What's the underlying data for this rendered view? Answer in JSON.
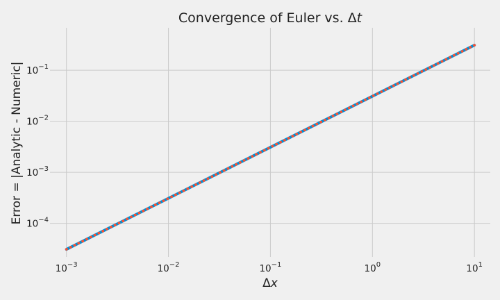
{
  "chart_data": {
    "type": "line",
    "title": {
      "prefix": "Convergence of Euler vs. Δ",
      "italic": "t"
    },
    "xlabel": {
      "prefix": "Δ",
      "italic": "x"
    },
    "ylabel": "Error = |Analytic - Numeric|",
    "xscale": "log",
    "yscale": "log",
    "xlim": [
      0.00069,
      14.3
    ],
    "ylim": [
      2.2e-05,
      0.68
    ],
    "grid": true,
    "xticks": [
      {
        "value": 0.001,
        "base": "10",
        "exp": "−3"
      },
      {
        "value": 0.01,
        "base": "10",
        "exp": "−2"
      },
      {
        "value": 0.1,
        "base": "10",
        "exp": "−1"
      },
      {
        "value": 1,
        "base": "10",
        "exp": "0"
      },
      {
        "value": 10,
        "base": "10",
        "exp": "1"
      }
    ],
    "yticks": [
      {
        "value": 0.0001,
        "base": "10",
        "exp": "−4"
      },
      {
        "value": 0.001,
        "base": "10",
        "exp": "−3"
      },
      {
        "value": 0.01,
        "base": "10",
        "exp": "−2"
      },
      {
        "value": 0.1,
        "base": "10",
        "exp": "−1"
      }
    ],
    "series": [
      {
        "style": "solid",
        "color": "#008fd5",
        "x": [
          0.001,
          10
        ],
        "y": [
          3.1e-05,
          0.31
        ]
      },
      {
        "style": "dotted",
        "color": "#fc4f30",
        "x": [
          0.001,
          0.021,
          0.041,
          0.061,
          0.081,
          0.101,
          0.121,
          0.141,
          0.161,
          0.181,
          0.201,
          0.221,
          0.241,
          0.261,
          0.281,
          0.301,
          0.5,
          0.75,
          1.0,
          1.5,
          2.0,
          2.5,
          3.0,
          3.5,
          4.0,
          4.5,
          5.0,
          5.5,
          6.0,
          6.5,
          7.0,
          7.5,
          8.0,
          8.5,
          9.0,
          9.5,
          10.0
        ],
        "y": [
          3.1e-05,
          0.00065,
          0.00127,
          0.00189,
          0.00251,
          0.00313,
          0.00375,
          0.00437,
          0.00499,
          0.00561,
          0.00623,
          0.00685,
          0.00747,
          0.00809,
          0.00871,
          0.00933,
          0.0155,
          0.0233,
          0.031,
          0.0465,
          0.062,
          0.0775,
          0.093,
          0.1085,
          0.124,
          0.1395,
          0.155,
          0.1705,
          0.186,
          0.2015,
          0.217,
          0.2325,
          0.248,
          0.2635,
          0.279,
          0.2945,
          0.31
        ]
      }
    ]
  }
}
